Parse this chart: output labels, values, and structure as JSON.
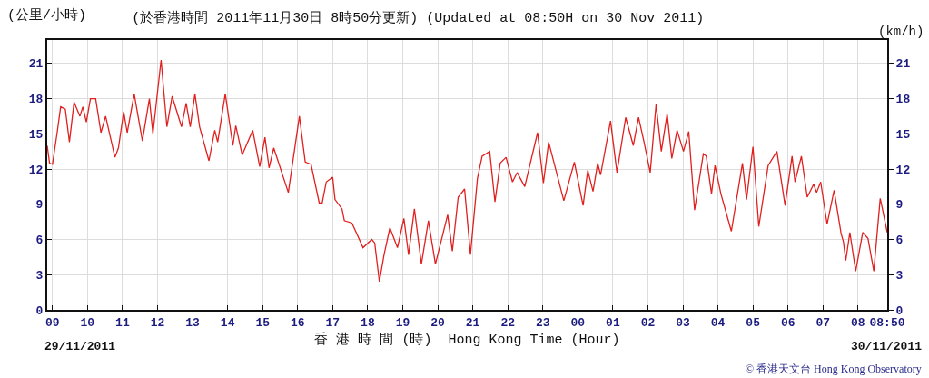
{
  "chart_data": {
    "type": "line",
    "title": "(於香港時間 2011年11月30日 8時50分更新) (Updated at 08:50H on 30 Nov 2011)",
    "xlabel": "香 港 時 間 (時)  Hong Kong Time (Hour)",
    "ylabel": "(公里/小時)",
    "y2label": "(km/h)",
    "annotations": [
      "29/11/2011",
      "30/11/2011",
      "© 香港天文台 Hong Kong Observatory"
    ],
    "x": [
      "2011-11-29T08:51",
      "2011-11-29T08:55",
      "2011-11-29T09:00",
      "2011-11-29T09:08",
      "2011-11-29T09:14",
      "2011-11-29T09:22",
      "2011-11-29T09:29",
      "2011-11-29T09:37",
      "2011-11-29T09:47",
      "2011-11-29T09:52",
      "2011-11-29T09:58",
      "2011-11-29T10:05",
      "2011-11-29T10:14",
      "2011-11-29T10:23",
      "2011-11-29T10:31",
      "2011-11-29T10:47",
      "2011-11-29T10:53",
      "2011-11-29T11:02",
      "2011-11-29T11:08",
      "2011-11-29T11:20",
      "2011-11-29T11:34",
      "2011-11-29T11:46",
      "2011-11-29T11:52",
      "2011-11-29T12:06",
      "2011-11-29T12:16",
      "2011-11-29T12:25",
      "2011-11-29T12:41",
      "2011-11-29T12:49",
      "2011-11-29T12:56",
      "2011-11-29T13:04",
      "2011-11-29T13:12",
      "2011-11-29T13:28",
      "2011-11-29T13:38",
      "2011-11-29T13:43",
      "2011-11-29T13:56",
      "2011-11-29T14:09",
      "2011-11-29T14:14",
      "2011-11-29T14:25",
      "2011-11-29T14:43",
      "2011-11-29T14:55",
      "2011-11-29T15:04",
      "2011-11-29T15:11",
      "2011-11-29T15:19",
      "2011-11-29T15:44",
      "2011-11-29T16:03",
      "2011-11-29T16:13",
      "2011-11-29T16:23",
      "2011-11-29T16:37",
      "2011-11-29T16:42",
      "2011-11-29T16:49",
      "2011-11-29T17:00",
      "2011-11-29T17:04",
      "2011-11-29T17:16",
      "2011-11-29T17:20",
      "2011-11-29T17:33",
      "2011-11-29T17:52",
      "2011-11-29T18:07",
      "2011-11-29T18:12",
      "2011-11-29T18:20",
      "2011-11-29T18:28",
      "2011-11-29T18:38",
      "2011-11-29T18:51",
      "2011-11-29T19:02",
      "2011-11-29T19:10",
      "2011-11-29T19:20",
      "2011-11-29T19:32",
      "2011-11-29T19:44",
      "2011-11-29T19:56",
      "2011-11-29T20:17",
      "2011-11-29T20:25",
      "2011-11-29T20:35",
      "2011-11-29T20:46",
      "2011-11-29T20:56",
      "2011-11-29T21:08",
      "2011-11-29T21:16",
      "2011-11-29T21:29",
      "2011-11-29T21:38",
      "2011-11-29T21:47",
      "2011-11-29T21:57",
      "2011-11-29T22:08",
      "2011-11-29T22:16",
      "2011-11-29T22:29",
      "2011-11-29T22:51",
      "2011-11-29T23:01",
      "2011-11-29T23:10",
      "2011-11-29T23:36",
      "2011-11-29T23:54",
      "2011-11-30T00:09",
      "2011-11-30T00:17",
      "2011-11-30T00:26",
      "2011-11-30T00:34",
      "2011-11-30T00:39",
      "2011-11-30T00:56",
      "2011-11-30T01:07",
      "2011-11-30T01:22",
      "2011-11-30T01:35",
      "2011-11-30T01:44",
      "2011-11-30T01:53",
      "2011-11-30T02:04",
      "2011-11-30T02:14",
      "2011-11-30T02:23",
      "2011-11-30T02:33",
      "2011-11-30T02:41",
      "2011-11-30T02:50",
      "2011-11-30T03:01",
      "2011-11-30T03:10",
      "2011-11-30T03:20",
      "2011-11-30T03:35",
      "2011-11-30T03:40",
      "2011-11-30T03:49",
      "2011-11-30T03:55",
      "2011-11-30T04:05",
      "2011-11-30T04:23",
      "2011-11-30T04:42",
      "2011-11-30T04:49",
      "2011-11-30T05:00",
      "2011-11-30T05:10",
      "2011-11-30T05:26",
      "2011-11-30T05:41",
      "2011-11-30T05:55",
      "2011-11-30T06:07",
      "2011-11-30T06:12",
      "2011-11-30T06:23",
      "2011-11-30T06:33",
      "2011-11-30T06:44",
      "2011-11-30T06:49",
      "2011-11-30T06:56",
      "2011-11-30T07:07",
      "2011-11-30T07:19",
      "2011-11-30T07:31",
      "2011-11-30T07:35",
      "2011-11-30T07:39",
      "2011-11-30T07:46",
      "2011-11-30T07:56",
      "2011-11-30T08:08",
      "2011-11-30T08:17",
      "2011-11-30T08:27",
      "2011-11-30T08:38",
      "2011-11-30T08:41",
      "2011-11-30T08:50"
    ],
    "series": [
      {
        "color": "#e0201f",
        "values": [
          14,
          12.5,
          12.4,
          15.1,
          17.3,
          17.1,
          14.3,
          17.7,
          16.5,
          17.3,
          16,
          18,
          18,
          15.1,
          16.5,
          13,
          13.8,
          16.9,
          15.1,
          18.4,
          14.4,
          18,
          15,
          21.3,
          15.6,
          18.2,
          15.6,
          17.6,
          15.6,
          18.4,
          15.6,
          12.7,
          15.3,
          14.3,
          18.4,
          14,
          15.7,
          13.2,
          15.3,
          12.2,
          14.7,
          12.1,
          13.8,
          10,
          16.5,
          12.6,
          12.4,
          9.1,
          9.1,
          10.9,
          11.3,
          9.4,
          8.6,
          7.6,
          7.4,
          5.3,
          6,
          5.7,
          2.4,
          4.7,
          7,
          5.3,
          7.8,
          4.7,
          8.6,
          3.9,
          7.6,
          3.9,
          8.1,
          5,
          9.6,
          10.3,
          4.7,
          11.2,
          13.1,
          13.5,
          9.2,
          12.5,
          13,
          10.9,
          11.7,
          10.5,
          15.1,
          10.8,
          14.3,
          9.3,
          12.6,
          8.9,
          11.9,
          10.1,
          12.5,
          11.5,
          16.1,
          11.7,
          16.4,
          14,
          16.4,
          14.4,
          11.7,
          17.5,
          13.5,
          16.7,
          12.9,
          15.3,
          13.5,
          15.2,
          8.5,
          13.3,
          13.1,
          9.9,
          12.3,
          9.9,
          6.7,
          12.5,
          9.4,
          13.9,
          7.1,
          12.3,
          13.5,
          8.9,
          13.1,
          10.9,
          13.1,
          9.6,
          10.7,
          10,
          10.9,
          7.3,
          10.2,
          6.5,
          5.8,
          4.2,
          6.6,
          3.3,
          6.6,
          6.1,
          3.3,
          9.5,
          8.8,
          6.6
        ]
      }
    ],
    "xlim": [
      "2011-11-29T08:51",
      "2011-11-30T08:50"
    ],
    "xticks": [
      {
        "value": "2011-11-29T09:00",
        "label": "09"
      },
      {
        "value": "2011-11-29T10:00",
        "label": "10"
      },
      {
        "value": "2011-11-29T11:00",
        "label": "11"
      },
      {
        "value": "2011-11-29T12:00",
        "label": "12"
      },
      {
        "value": "2011-11-29T13:00",
        "label": "13"
      },
      {
        "value": "2011-11-29T14:00",
        "label": "14"
      },
      {
        "value": "2011-11-29T15:00",
        "label": "15"
      },
      {
        "value": "2011-11-29T16:00",
        "label": "16"
      },
      {
        "value": "2011-11-29T17:00",
        "label": "17"
      },
      {
        "value": "2011-11-29T18:00",
        "label": "18"
      },
      {
        "value": "2011-11-29T19:00",
        "label": "19"
      },
      {
        "value": "2011-11-29T20:00",
        "label": "20"
      },
      {
        "value": "2011-11-29T21:00",
        "label": "21"
      },
      {
        "value": "2011-11-29T22:00",
        "label": "22"
      },
      {
        "value": "2011-11-29T23:00",
        "label": "23"
      },
      {
        "value": "2011-11-30T00:00",
        "label": "00"
      },
      {
        "value": "2011-11-30T01:00",
        "label": "01"
      },
      {
        "value": "2011-11-30T02:00",
        "label": "02"
      },
      {
        "value": "2011-11-30T03:00",
        "label": "03"
      },
      {
        "value": "2011-11-30T04:00",
        "label": "04"
      },
      {
        "value": "2011-11-30T05:00",
        "label": "05"
      },
      {
        "value": "2011-11-30T06:00",
        "label": "06"
      },
      {
        "value": "2011-11-30T07:00",
        "label": "07"
      },
      {
        "value": "2011-11-30T08:00",
        "label": "08"
      },
      {
        "value": "2011-11-30T08:50",
        "label": "08:50"
      }
    ],
    "ylim": [
      0,
      23
    ],
    "yticks": [
      0,
      3,
      6,
      9,
      12,
      15,
      18,
      21
    ],
    "y2lim": [
      0,
      23
    ],
    "y2ticks": [
      0,
      3,
      6,
      9,
      12,
      15,
      18,
      21
    ],
    "grid": true,
    "marker": "none",
    "line_style": "solid"
  }
}
